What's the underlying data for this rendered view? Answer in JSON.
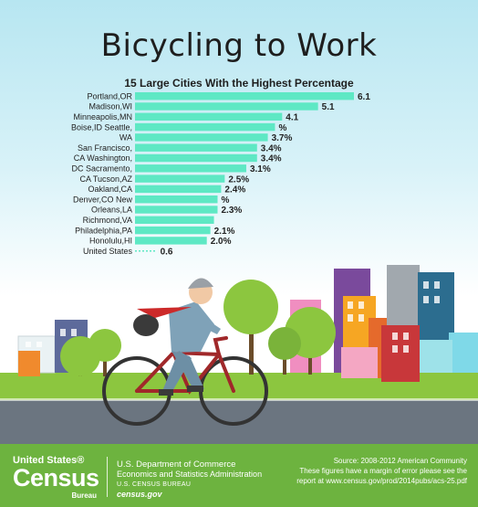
{
  "title": "Bicycling to Work",
  "chart_data": {
    "type": "bar",
    "orientation": "horizontal",
    "title": "15 Large Cities With the Highest Percentage",
    "categories": [
      "Portland,OR",
      "Madison,WI",
      "Minneapolis,MN",
      "Boise,ID Seattle,",
      "WA",
      "San Francisco,",
      "CA Washington,",
      "DC Sacramento,",
      "CA Tucson,AZ",
      "Oakland,CA",
      "Denver,CO New",
      "Orleans,LA",
      "Richmond,VA",
      "Philadelphia,PA",
      "Honolulu,HI",
      "United States"
    ],
    "value_labels": [
      "6.1",
      "5.1",
      "4.1",
      "%",
      "3.7%",
      "3.4%",
      "3.4%",
      "3.1%",
      "2.5%",
      "2.4%",
      "%",
      "2.3%",
      "",
      "2.1%",
      "2.0%",
      "0.6"
    ],
    "values": [
      6.1,
      5.1,
      4.1,
      3.9,
      3.7,
      3.4,
      3.4,
      3.1,
      2.5,
      2.4,
      2.3,
      2.3,
      2.2,
      2.1,
      2.0,
      0.6
    ],
    "xlim": [
      0,
      6.1
    ],
    "grid": false,
    "bar_color": "#5ee8c4",
    "reference_category": "United States"
  },
  "footer": {
    "logo_line1": "United States®",
    "logo_line2": "Census",
    "logo_line3": "Bureau",
    "dept_line1": "U.S. Department of Commerce",
    "dept_line2": "Economics and Statistics Administration",
    "dept_line3": "U.S. CENSUS BUREAU",
    "dept_line4": "census.gov",
    "source_line1": "Source: 2008-2012 American Community",
    "source_line2": "These figures have a margin of error please see the",
    "source_line3": "report at www.census.gov/prod/2014pubs/acs-25.pdf"
  },
  "colors": {
    "sky": "#c6ecf5",
    "footer_green": "#6db33f",
    "grass": "#8cc63f",
    "road": "#6b7580",
    "bike": "#a0282a"
  },
  "illustration": [
    "cyclist",
    "bicycle",
    "trees",
    "buildings",
    "road"
  ]
}
